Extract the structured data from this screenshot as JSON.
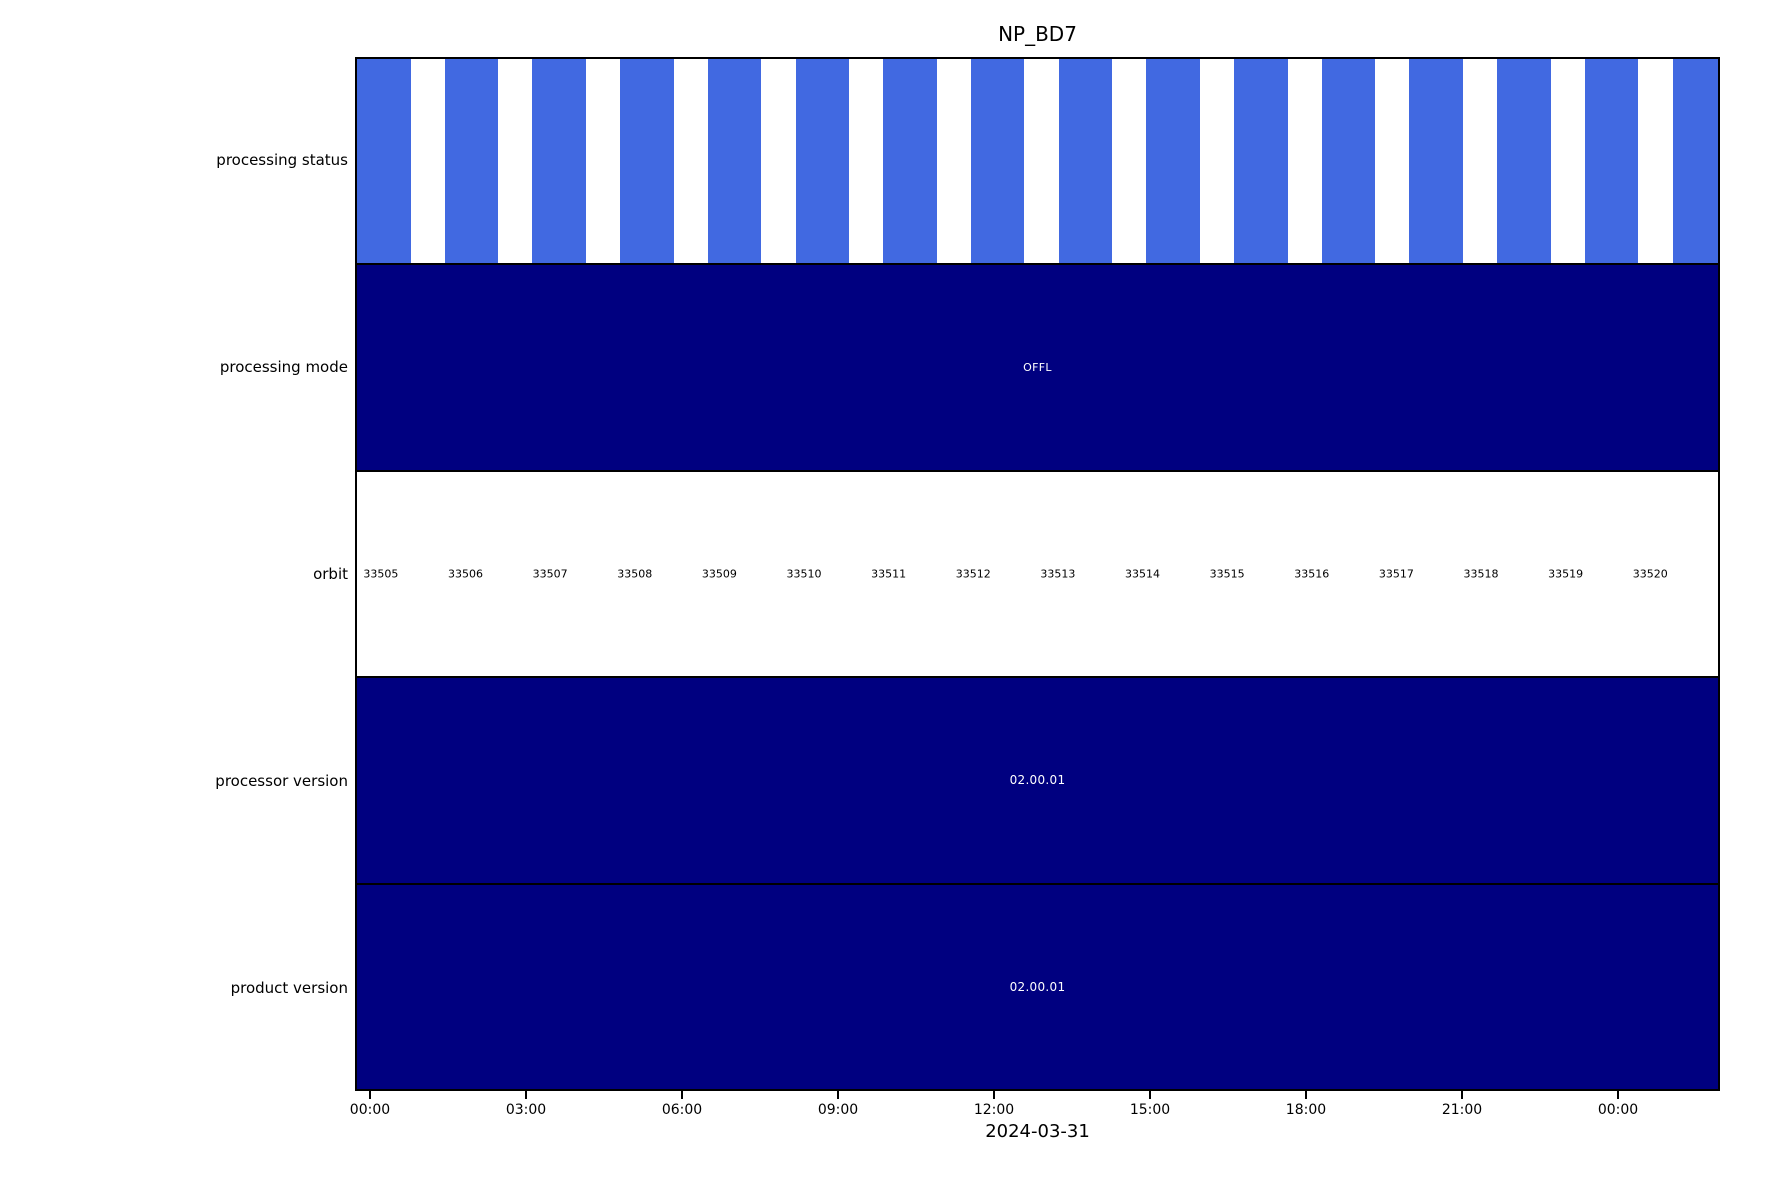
{
  "title": "NP_BD7",
  "x_axis": {
    "ticks": [
      "00:00",
      "03:00",
      "06:00",
      "09:00",
      "12:00",
      "15:00",
      "18:00",
      "21:00",
      "00:00"
    ],
    "date_label": "2024-03-31"
  },
  "rows": [
    {
      "label": "processing status",
      "type": "segments"
    },
    {
      "label": "processing mode",
      "type": "value",
      "value": "OFFL"
    },
    {
      "label": "orbit",
      "type": "orbit-numbers"
    },
    {
      "label": "processor version",
      "type": "value",
      "value": "02.00.01"
    },
    {
      "label": "product version",
      "type": "value",
      "value": "02.00.01"
    }
  ],
  "orbits": [
    "33505",
    "33506",
    "33507",
    "33508",
    "33509",
    "33510",
    "33511",
    "33512",
    "33513",
    "33514",
    "33515",
    "33516",
    "33517",
    "33518",
    "33519",
    "33520"
  ],
  "colors": {
    "segment_blue": "#4169e1",
    "band_navy": "#000080",
    "background": "#ffffff",
    "text_dark": "#000000",
    "text_light": "#ffffff"
  },
  "chart_data": {
    "type": "table",
    "title": "NP_BD7",
    "x_axis": {
      "date": "2024-03-31",
      "tick_labels": [
        "00:00",
        "03:00",
        "06:00",
        "09:00",
        "12:00",
        "15:00",
        "18:00",
        "21:00",
        "00:00"
      ],
      "tick_interval_hours": 3
    },
    "rows": [
      {
        "label": "processing status",
        "representation": "one blue segment per orbit, alternating with white gaps",
        "segment_count": 16,
        "segment_color": "#4169e1"
      },
      {
        "label": "processing mode",
        "value": "OFFL",
        "band_color": "#000080"
      },
      {
        "label": "orbit",
        "values": [
          33505,
          33506,
          33507,
          33508,
          33509,
          33510,
          33511,
          33512,
          33513,
          33514,
          33515,
          33516,
          33517,
          33518,
          33519,
          33520
        ],
        "band_color": "#ffffff"
      },
      {
        "label": "processor version",
        "value": "02.00.01",
        "band_color": "#000080"
      },
      {
        "label": "product version",
        "value": "02.00.01",
        "band_color": "#000080"
      }
    ]
  }
}
